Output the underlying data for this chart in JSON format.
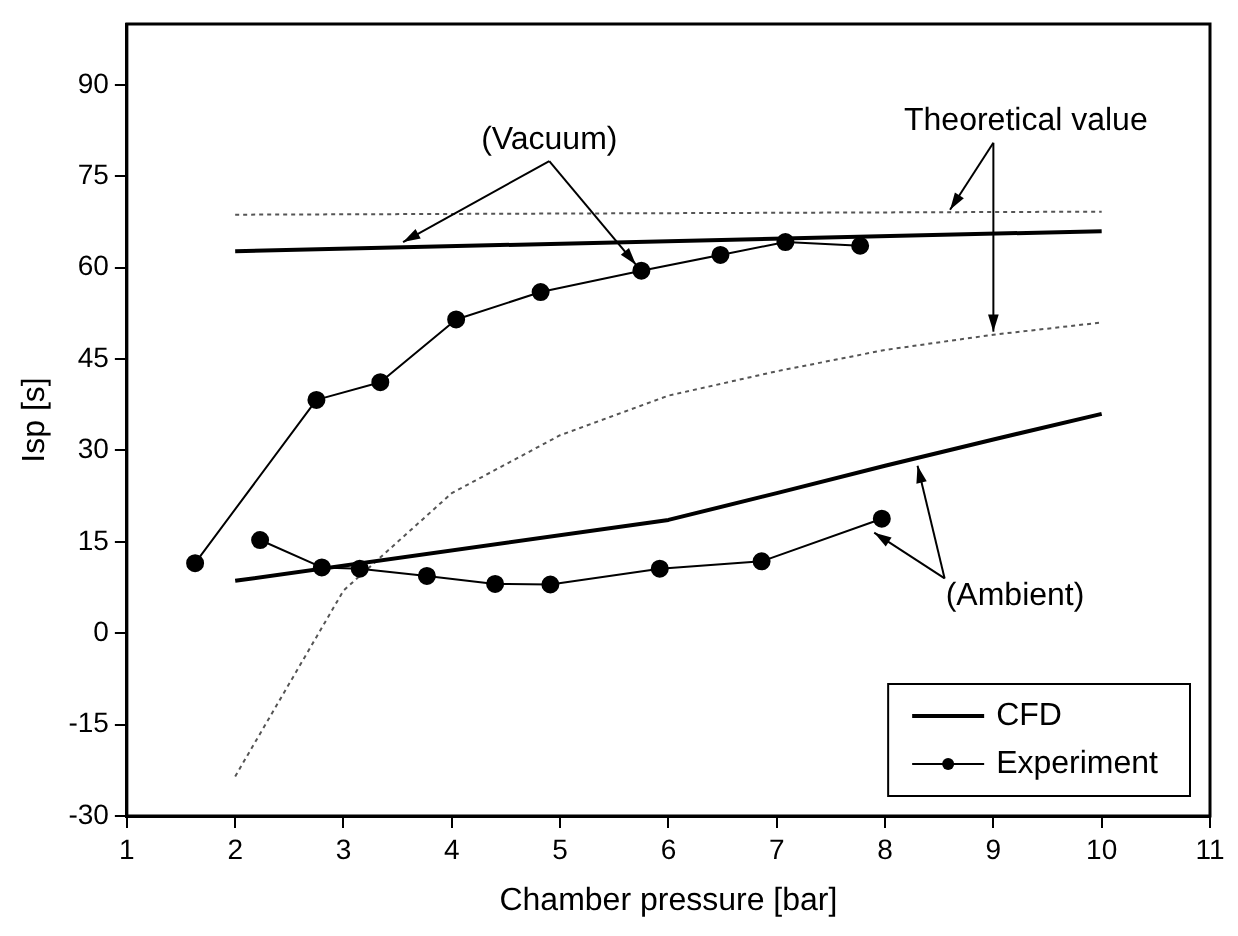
{
  "chart_data": {
    "type": "line",
    "xlabel": "Chamber pressure [bar]",
    "ylabel": "Isp [s]",
    "xlim": [
      1,
      11
    ],
    "ylim": [
      -30,
      100
    ],
    "xticks": [
      1,
      2,
      3,
      4,
      5,
      6,
      7,
      8,
      9,
      10,
      11
    ],
    "yticks": [
      -30,
      -15,
      0,
      15,
      30,
      45,
      60,
      75,
      90
    ],
    "grid": false,
    "legend": "bottom right",
    "annotations": [
      {
        "text": "(Vacuum)",
        "x": 3.55,
        "y": 64.2
      },
      {
        "text": "Theoretical value",
        "x": 8.6,
        "y": 69.5
      },
      {
        "text": "(Ambient)",
        "x": 8.3,
        "y": 27.5
      }
    ],
    "series": [
      {
        "name": "CFD",
        "color": "#000000",
        "x": [
          2,
          10
        ],
        "values": [
          62.7,
          66
        ],
        "marker": "none",
        "line_style": "solid"
      },
      {
        "color": "#000000",
        "x": [
          2,
          6,
          7,
          8,
          9,
          10
        ],
        "values": [
          8.6,
          18.6,
          23,
          27.5,
          31.8,
          36
        ],
        "marker": "none",
        "line_style": "solid"
      },
      {
        "name": "Experiment",
        "color": "#000000",
        "x": [
          1.63,
          2.75,
          3.34,
          4.04,
          4.82,
          5.75,
          6.48,
          7.08,
          7.77
        ],
        "values": [
          11.5,
          38.3,
          41.2,
          51.5,
          56,
          59.5,
          62.1,
          64.2,
          63.6
        ],
        "marker": "circle",
        "line_style": "solid"
      },
      {
        "color": "#000000",
        "x": [
          2.23,
          2.8,
          3.15,
          3.77,
          4.4,
          4.91,
          5.92,
          6.86,
          7.97
        ],
        "values": [
          15.3,
          10.8,
          10.6,
          9.4,
          8.1,
          8,
          10.6,
          11.8,
          18.8
        ],
        "marker": "circle",
        "line_style": "solid"
      },
      {
        "color": "#555555",
        "x": [
          2,
          10
        ],
        "values": [
          68.7,
          69.2
        ],
        "marker": "none",
        "line_style": "dotted"
      },
      {
        "color": "#555555",
        "x": [
          2,
          3,
          4,
          5,
          6,
          7,
          8,
          9,
          10
        ],
        "values": [
          -23.5,
          7,
          23,
          32.5,
          39,
          43,
          46.5,
          49,
          51
        ],
        "marker": "none",
        "line_style": "dotted"
      }
    ]
  }
}
